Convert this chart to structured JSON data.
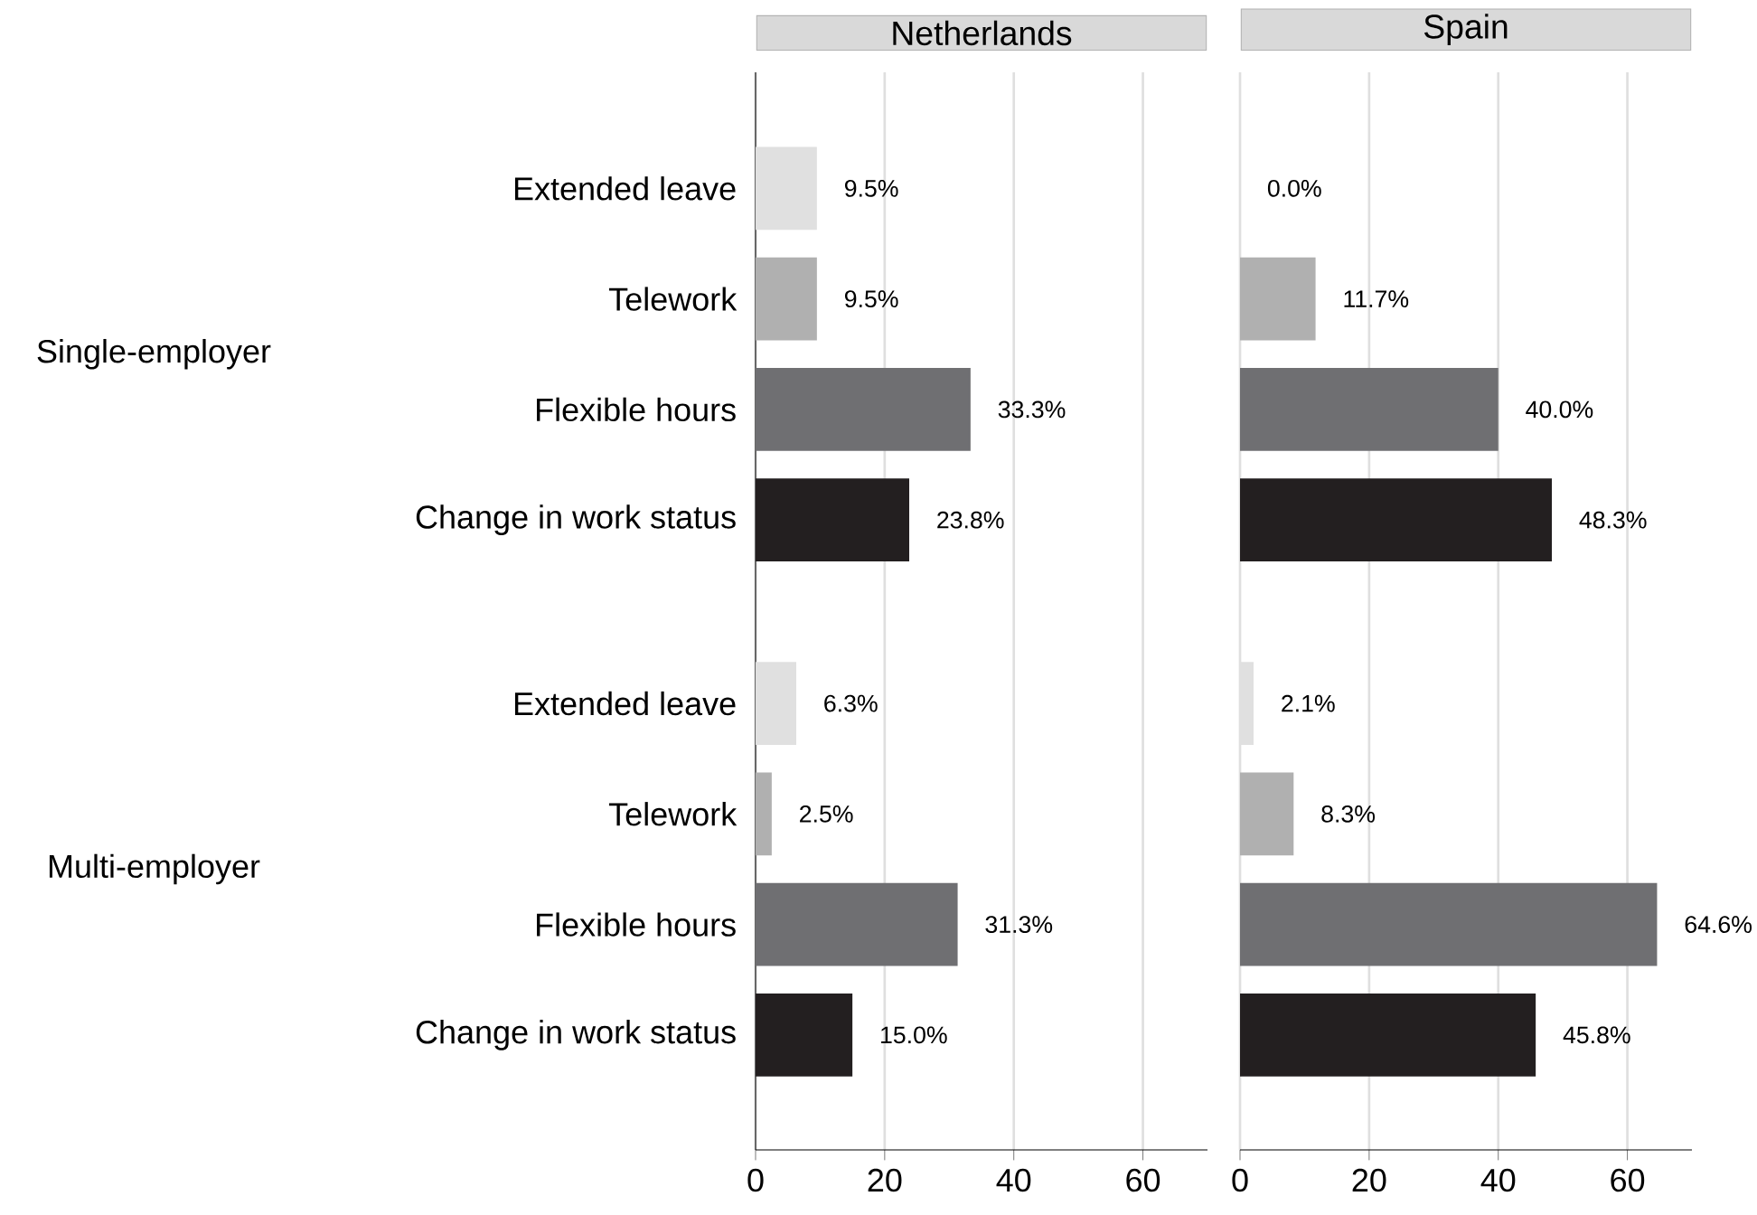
{
  "chart_data": [
    {
      "type": "bar",
      "orientation": "horizontal",
      "title": "Netherlands",
      "categories": [
        "Extended leave",
        "Telework",
        "Flexible hours",
        "Change in work status",
        "Extended leave",
        "Telework",
        "Flexible hours",
        "Change in work status"
      ],
      "values": [
        9.5,
        9.5,
        33.3,
        23.8,
        6.3,
        2.5,
        31.3,
        15.0
      ],
      "value_labels": [
        "9.5%",
        "9.5%",
        "33.3%",
        "23.8%",
        "6.3%",
        "2.5%",
        "31.3%",
        "15.0%"
      ],
      "colors": [
        "#e0e0e0",
        "#b0b0b0",
        "#6f6f72",
        "#231f20",
        "#e0e0e0",
        "#b0b0b0",
        "#6f6f72",
        "#231f20"
      ],
      "xlim": [
        0,
        70
      ],
      "xticks": [
        0,
        20,
        40,
        60
      ],
      "grid": "x",
      "annotations": [
        "Single-employer",
        "Multi-employer"
      ]
    },
    {
      "type": "bar",
      "orientation": "horizontal",
      "title": "Spain",
      "categories": [
        null,
        null,
        null,
        null,
        null,
        null,
        null,
        null
      ],
      "values": [
        0.0,
        11.7,
        40.0,
        48.3,
        2.1,
        8.3,
        64.6,
        45.8
      ],
      "value_labels": [
        "0.0%",
        "11.7%",
        "40.0%",
        "48.3%",
        "2.1%",
        "8.3%",
        "64.6%",
        "45.8%"
      ],
      "colors": [
        "#e0e0e0",
        "#b0b0b0",
        "#6f6f72",
        "#231f20",
        "#e0e0e0",
        "#b0b0b0",
        "#6f6f72",
        "#231f20"
      ],
      "xlim": [
        0,
        70
      ],
      "xticks": [
        0,
        20,
        40,
        60
      ],
      "grid": "x",
      "tick_labels": "x"
    }
  ]
}
